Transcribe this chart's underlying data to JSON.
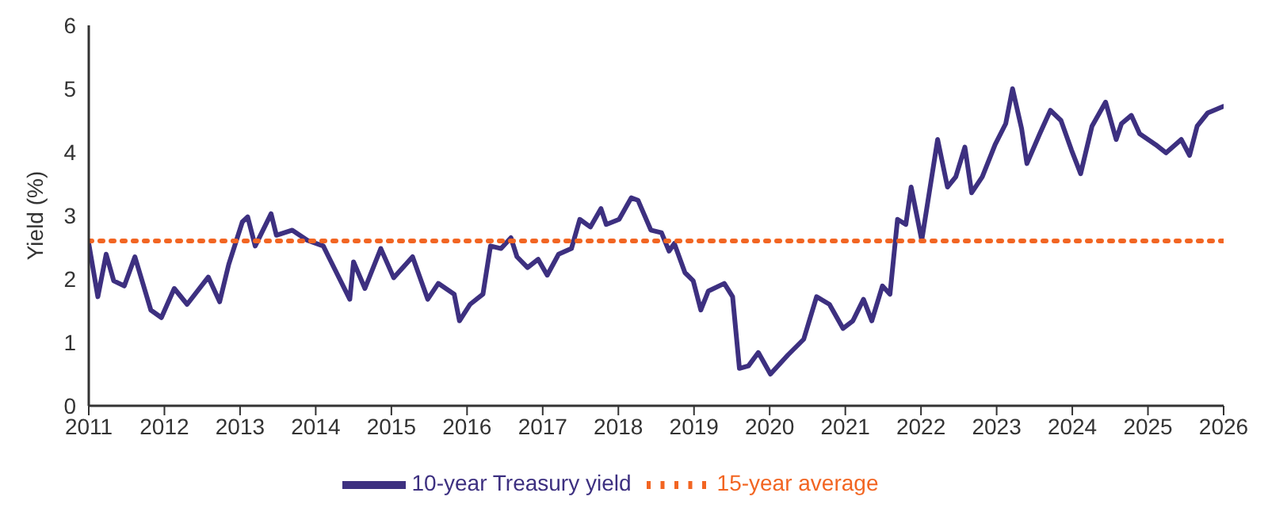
{
  "chart_data": {
    "type": "line",
    "ylabel": "Yield (%)",
    "xlim": [
      2011,
      2026
    ],
    "xticks": [
      2011,
      2012,
      2013,
      2014,
      2015,
      2016,
      2017,
      2018,
      2019,
      2020,
      2021,
      2022,
      2023,
      2024,
      2025,
      2026
    ],
    "ylim": [
      0,
      6
    ],
    "yticks": [
      0,
      1,
      2,
      3,
      4,
      5,
      6
    ],
    "grid": false,
    "legend": "bottom",
    "marker": "none",
    "series": [
      {
        "name": "10-year Treasury yield",
        "color": "#3d3080",
        "line_style": "solid",
        "x": [
          2011.0,
          2011.12,
          2011.23,
          2011.33,
          2011.47,
          2011.61,
          2011.82,
          2011.96,
          2012.13,
          2012.3,
          2012.58,
          2012.73,
          2012.85,
          2013.03,
          2013.1,
          2013.2,
          2013.41,
          2013.48,
          2013.69,
          2013.89,
          2014.1,
          2014.17,
          2014.45,
          2014.5,
          2014.65,
          2014.86,
          2015.03,
          2015.28,
          2015.48,
          2015.62,
          2015.83,
          2015.9,
          2016.04,
          2016.21,
          2016.31,
          2016.45,
          2016.58,
          2016.66,
          2016.8,
          2016.94,
          2017.06,
          2017.21,
          2017.38,
          2017.49,
          2017.63,
          2017.77,
          2017.84,
          2018.01,
          2018.17,
          2018.26,
          2018.43,
          2018.57,
          2018.67,
          2018.74,
          2018.88,
          2018.99,
          2019.09,
          2019.19,
          2019.4,
          2019.51,
          2019.6,
          2019.72,
          2019.85,
          2020.01,
          2020.24,
          2020.45,
          2020.62,
          2020.79,
          2020.97,
          2021.1,
          2021.24,
          2021.35,
          2021.49,
          2021.59,
          2021.69,
          2021.8,
          2021.87,
          2022.01,
          2022.22,
          2022.35,
          2022.46,
          2022.58,
          2022.67,
          2022.81,
          2022.98,
          2023.12,
          2023.21,
          2023.33,
          2023.4,
          2023.57,
          2023.71,
          2023.85,
          2023.99,
          2024.11,
          2024.26,
          2024.44,
          2024.58,
          2024.65,
          2024.78,
          2024.89,
          2025.1,
          2025.24,
          2025.44,
          2025.55,
          2025.65,
          2025.79,
          2025.99
        ],
        "values": [
          2.56,
          1.72,
          2.39,
          1.97,
          1.89,
          2.35,
          1.51,
          1.39,
          1.85,
          1.6,
          2.03,
          1.64,
          2.23,
          2.9,
          2.98,
          2.52,
          3.03,
          2.69,
          2.77,
          2.61,
          2.52,
          2.35,
          1.68,
          2.27,
          1.85,
          2.48,
          2.02,
          2.35,
          1.68,
          1.93,
          1.76,
          1.34,
          1.6,
          1.76,
          2.52,
          2.48,
          2.65,
          2.35,
          2.18,
          2.31,
          2.06,
          2.39,
          2.48,
          2.94,
          2.82,
          3.11,
          2.86,
          2.94,
          3.28,
          3.24,
          2.77,
          2.73,
          2.44,
          2.56,
          2.1,
          1.97,
          1.51,
          1.81,
          1.93,
          1.72,
          0.59,
          0.63,
          0.84,
          0.5,
          0.8,
          1.05,
          1.72,
          1.6,
          1.22,
          1.34,
          1.68,
          1.34,
          1.89,
          1.76,
          2.94,
          2.86,
          3.45,
          2.61,
          4.2,
          3.45,
          3.61,
          4.08,
          3.36,
          3.61,
          4.12,
          4.45,
          5.0,
          4.37,
          3.82,
          4.29,
          4.66,
          4.5,
          4.03,
          3.66,
          4.41,
          4.79,
          4.2,
          4.45,
          4.58,
          4.29,
          4.12,
          3.99,
          4.2,
          3.95,
          4.41,
          4.62,
          4.72
        ]
      },
      {
        "name": "15-year average",
        "color": "#f26522",
        "line_style": "dotted",
        "x": [
          2011,
          2026
        ],
        "values": [
          2.6,
          2.6
        ]
      }
    ]
  }
}
